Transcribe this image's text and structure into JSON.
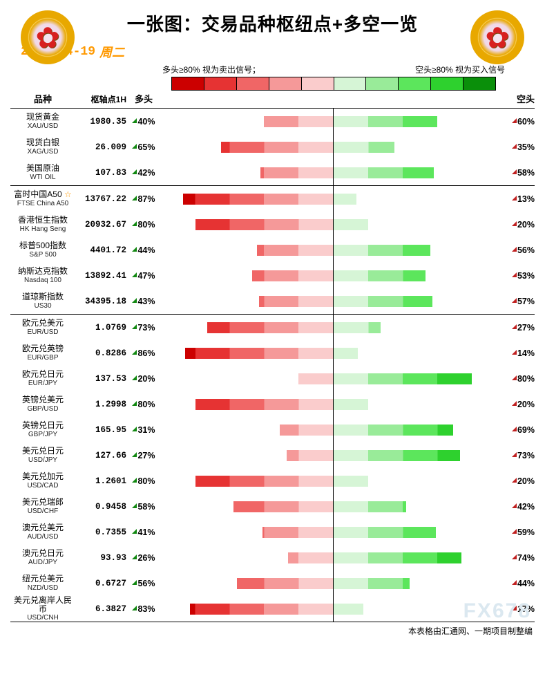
{
  "title": "一张图：交易品种枢纽点+多空一览",
  "date": "2022-04-19",
  "weekday": "周二",
  "legend_left": "多头≥80% 视为卖出信号；",
  "legend_right": "空头≥80% 视为买入信号",
  "headers": {
    "name": "品种",
    "pivot": "枢轴点1H",
    "long": "多头",
    "short": "空头"
  },
  "scale_colors_left": [
    "#cc0000",
    "#e63333",
    "#f06666",
    "#f59999",
    "#facccc"
  ],
  "scale_colors_right": [
    "#d6f5d6",
    "#99eb99",
    "#5ce65c",
    "#2ed12e",
    "#0a8f0a"
  ],
  "long_gradient": [
    "#cc0000",
    "#e63333",
    "#f06666",
    "#f59999",
    "#facccc"
  ],
  "short_gradient": [
    "#d6f5d6",
    "#99eb99",
    "#5ce65c",
    "#2ed12e",
    "#0a8f0a"
  ],
  "watermark": "FX678",
  "footer": "本表格由汇通网、一期项目制整编",
  "groups": [
    {
      "rows": [
        {
          "cn": "现货黄金",
          "en": "XAU/USD",
          "pivot": "1980.35",
          "long": 40,
          "short": 60,
          "star": false
        },
        {
          "cn": "现货白银",
          "en": "XAG/USD",
          "pivot": "26.009",
          "long": 65,
          "short": 35,
          "star": false
        },
        {
          "cn": "美国原油",
          "en": "WTI OIL",
          "pivot": "107.83",
          "long": 42,
          "short": 58,
          "star": false
        }
      ]
    },
    {
      "rows": [
        {
          "cn": "富时中国A50",
          "en": "FTSE China A50",
          "pivot": "13767.22",
          "long": 87,
          "short": 13,
          "star": true
        },
        {
          "cn": "香港恒生指数",
          "en": "HK Hang Seng",
          "pivot": "20932.67",
          "long": 80,
          "short": 20,
          "star": false
        },
        {
          "cn": "标普500指数",
          "en": "S&P 500",
          "pivot": "4401.72",
          "long": 44,
          "short": 56,
          "star": false
        },
        {
          "cn": "纳斯达克指数",
          "en": "Nasdaq 100",
          "pivot": "13892.41",
          "long": 47,
          "short": 53,
          "star": false
        },
        {
          "cn": "道琼斯指数",
          "en": "US30",
          "pivot": "34395.18",
          "long": 43,
          "short": 57,
          "star": false
        }
      ]
    },
    {
      "rows": [
        {
          "cn": "欧元兑美元",
          "en": "EUR/USD",
          "pivot": "1.0769",
          "long": 73,
          "short": 27,
          "star": false
        },
        {
          "cn": "欧元兑英镑",
          "en": "EUR/GBP",
          "pivot": "0.8286",
          "long": 86,
          "short": 14,
          "star": false
        },
        {
          "cn": "欧元兑日元",
          "en": "EUR/JPY",
          "pivot": "137.53",
          "long": 20,
          "short": 80,
          "star": false
        },
        {
          "cn": "英镑兑美元",
          "en": "GBP/USD",
          "pivot": "1.2998",
          "long": 80,
          "short": 20,
          "star": false
        },
        {
          "cn": "英镑兑日元",
          "en": "GBP/JPY",
          "pivot": "165.95",
          "long": 31,
          "short": 69,
          "star": false
        },
        {
          "cn": "美元兑日元",
          "en": "USD/JPY",
          "pivot": "127.66",
          "long": 27,
          "short": 73,
          "star": false
        },
        {
          "cn": "美元兑加元",
          "en": "USD/CAD",
          "pivot": "1.2601",
          "long": 80,
          "short": 20,
          "star": false
        },
        {
          "cn": "美元兑瑞郎",
          "en": "USD/CHF",
          "pivot": "0.9458",
          "long": 58,
          "short": 42,
          "star": false
        },
        {
          "cn": "澳元兑美元",
          "en": "AUD/USD",
          "pivot": "0.7355",
          "long": 41,
          "short": 59,
          "star": false
        },
        {
          "cn": "澳元兑日元",
          "en": "AUD/JPY",
          "pivot": "93.93",
          "long": 26,
          "short": 74,
          "star": false
        },
        {
          "cn": "纽元兑美元",
          "en": "NZD/USD",
          "pivot": "0.6727",
          "long": 56,
          "short": 44,
          "star": false
        },
        {
          "cn": "美元兑离岸人民币",
          "en": "USD/CNH",
          "pivot": "6.3827",
          "long": 83,
          "short": 17,
          "star": false
        }
      ]
    }
  ]
}
